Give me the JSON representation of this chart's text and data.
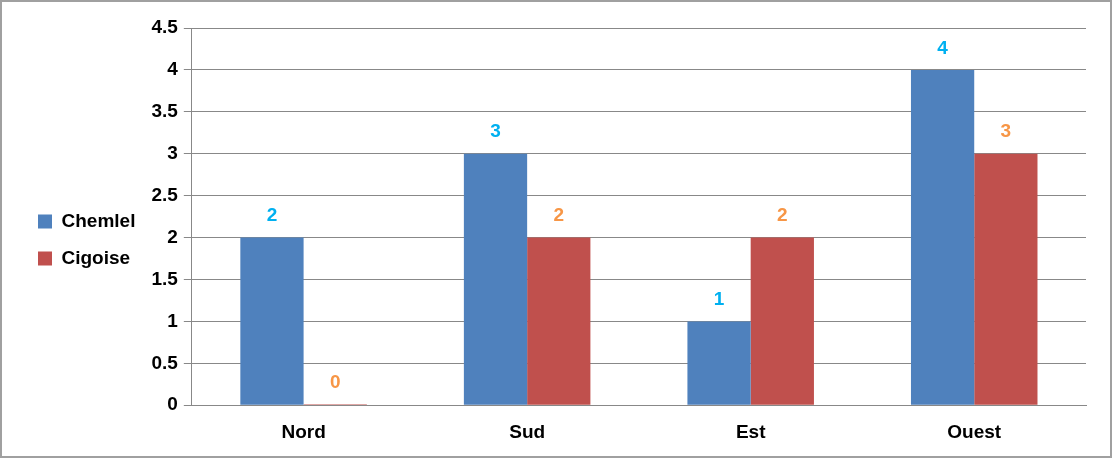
{
  "chart_data": {
    "type": "bar",
    "categories": [
      "Nord",
      "Sud",
      "Est",
      "Ouest"
    ],
    "series": [
      {
        "name": "Chemlel",
        "color": "#4f81bd",
        "values": [
          2,
          3,
          1,
          4
        ]
      },
      {
        "name": "Cigoise",
        "color": "#c0504d",
        "values": [
          0,
          2,
          2,
          3
        ]
      }
    ],
    "ylim": [
      0,
      4.5
    ],
    "yticks": [
      0,
      0.5,
      1,
      1.5,
      2,
      2.5,
      3,
      3.5,
      4,
      4.5
    ],
    "grid": "y",
    "legend": "left",
    "data_labels": true
  }
}
